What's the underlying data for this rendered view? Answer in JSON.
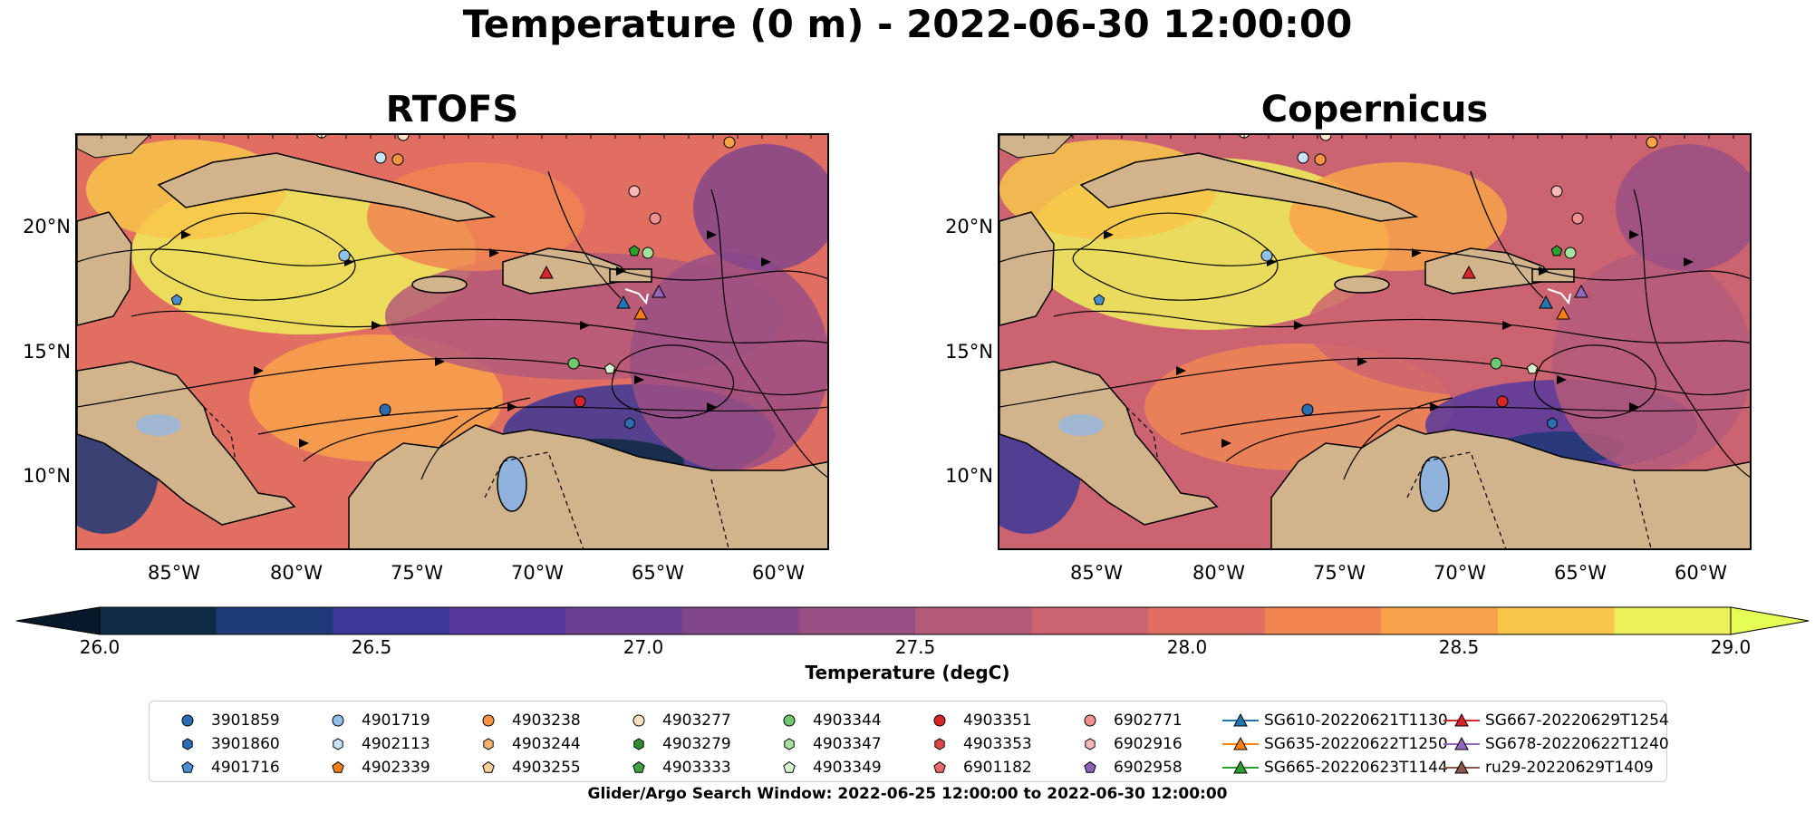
{
  "title": "Temperature (0 m) - 2022-06-30 12:00:00",
  "panels": [
    {
      "title": "RTOFS"
    },
    {
      "title": "Copernicus"
    }
  ],
  "lat_ticks": [
    "20°N",
    "15°N",
    "10°N"
  ],
  "lon_ticks": [
    "85°W",
    "80°W",
    "75°W",
    "70°W",
    "65°W",
    "60°W"
  ],
  "colorbar": {
    "label": "Temperature (degC)",
    "ticks": [
      "26.0",
      "26.5",
      "27.0",
      "27.5",
      "28.0",
      "28.5",
      "29.0"
    ],
    "colors": [
      "#0f2a44",
      "#1e3a78",
      "#3b3898",
      "#57389c",
      "#6b3f92",
      "#82478b",
      "#9a4f84",
      "#b45a7a",
      "#cb6470",
      "#e06f62",
      "#f08552",
      "#f9a24a",
      "#f8c54a",
      "#eef05a"
    ],
    "under_color": "#08192b",
    "over_color": "#e6ff55"
  },
  "legend": {
    "columns": [
      [
        {
          "label": "3901859",
          "marker": "circle",
          "color": "#2a6db0"
        },
        {
          "label": "3901860",
          "marker": "hexagon",
          "color": "#2a6db0"
        },
        {
          "label": "4901716",
          "marker": "pentagon",
          "color": "#4a90d0"
        }
      ],
      [
        {
          "label": "4901719",
          "marker": "circle",
          "color": "#8fc1ea"
        },
        {
          "label": "4902113",
          "marker": "hexagon",
          "color": "#c9e3f8"
        },
        {
          "label": "4902339",
          "marker": "pentagon",
          "color": "#f07f1a"
        }
      ],
      [
        {
          "label": "4903238",
          "marker": "circle",
          "color": "#f59445"
        },
        {
          "label": "4903244",
          "marker": "hexagon",
          "color": "#f7b070"
        },
        {
          "label": "4903255",
          "marker": "pentagon",
          "color": "#fbcf9a"
        }
      ],
      [
        {
          "label": "4903277",
          "marker": "circle",
          "color": "#fde0c0"
        },
        {
          "label": "4903279",
          "marker": "hexagon",
          "color": "#2f8f2f"
        },
        {
          "label": "4903333",
          "marker": "pentagon",
          "color": "#3ea23e"
        }
      ],
      [
        {
          "label": "4903344",
          "marker": "circle",
          "color": "#6fca6f"
        },
        {
          "label": "4903347",
          "marker": "hexagon",
          "color": "#a8e2a0"
        },
        {
          "label": "4903349",
          "marker": "pentagon",
          "color": "#d8f2d0"
        }
      ],
      [
        {
          "label": "4903351",
          "marker": "circle",
          "color": "#d62728"
        },
        {
          "label": "4903353",
          "marker": "hexagon",
          "color": "#e04848"
        },
        {
          "label": "6901182",
          "marker": "pentagon",
          "color": "#e86a6a"
        }
      ],
      [
        {
          "label": "6902771",
          "marker": "circle",
          "color": "#f09090"
        },
        {
          "label": "6902916",
          "marker": "hexagon",
          "color": "#f6b8b8"
        },
        {
          "label": "6902958",
          "marker": "pentagon",
          "color": "#8f5fb5"
        }
      ],
      [
        {
          "label": "SG610-20220621T1130",
          "marker": "triangle-line",
          "color": "#1f77b4"
        },
        {
          "label": "SG635-20220622T1250",
          "marker": "triangle-line",
          "color": "#ff7f0e"
        },
        {
          "label": "SG665-20220623T1144",
          "marker": "triangle-line",
          "color": "#2ca02c"
        }
      ],
      [
        {
          "label": "SG667-20220629T1254",
          "marker": "triangle-line",
          "color": "#d62728"
        },
        {
          "label": "SG678-20220622T1240",
          "marker": "triangle-line",
          "color": "#9467bd"
        },
        {
          "label": "ru29-20220629T1409",
          "marker": "triangle-line",
          "color": "#8c564b"
        }
      ]
    ]
  },
  "search_window": "Glider/Argo Search Window: 2022-06-25 12:00:00 to 2022-06-30 12:00:00",
  "map_colors": {
    "land": "#d2b48c",
    "lake": "#8fb3dc",
    "stream": "#000000"
  }
}
